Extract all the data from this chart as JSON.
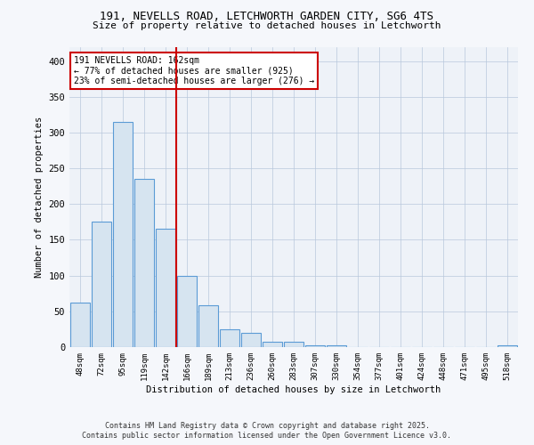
{
  "title_line1": "191, NEVELLS ROAD, LETCHWORTH GARDEN CITY, SG6 4TS",
  "title_line2": "Size of property relative to detached houses in Letchworth",
  "xlabel": "Distribution of detached houses by size in Letchworth",
  "ylabel": "Number of detached properties",
  "categories": [
    "48sqm",
    "72sqm",
    "95sqm",
    "119sqm",
    "142sqm",
    "166sqm",
    "189sqm",
    "213sqm",
    "236sqm",
    "260sqm",
    "283sqm",
    "307sqm",
    "330sqm",
    "354sqm",
    "377sqm",
    "401sqm",
    "424sqm",
    "448sqm",
    "471sqm",
    "495sqm",
    "518sqm"
  ],
  "values": [
    62,
    175,
    315,
    235,
    165,
    100,
    58,
    25,
    20,
    8,
    8,
    3,
    3,
    0,
    0,
    0,
    0,
    0,
    0,
    0,
    2
  ],
  "highlight_index": 4.5,
  "bar_color_normal": "#d6e4f0",
  "bar_edge_color": "#5b9bd5",
  "highlight_line_color": "#cc0000",
  "annotation_box_color": "#cc0000",
  "annotation_text_line1": "191 NEVELLS ROAD: 162sqm",
  "annotation_text_line2": "← 77% of detached houses are smaller (925)",
  "annotation_text_line3": "23% of semi-detached houses are larger (276) →",
  "ylim": [
    0,
    420
  ],
  "yticks": [
    0,
    50,
    100,
    150,
    200,
    250,
    300,
    350,
    400
  ],
  "footer_line1": "Contains HM Land Registry data © Crown copyright and database right 2025.",
  "footer_line2": "Contains public sector information licensed under the Open Government Licence v3.0.",
  "bg_color": "#eef2f8",
  "fig_bg_color": "#f5f7fb"
}
